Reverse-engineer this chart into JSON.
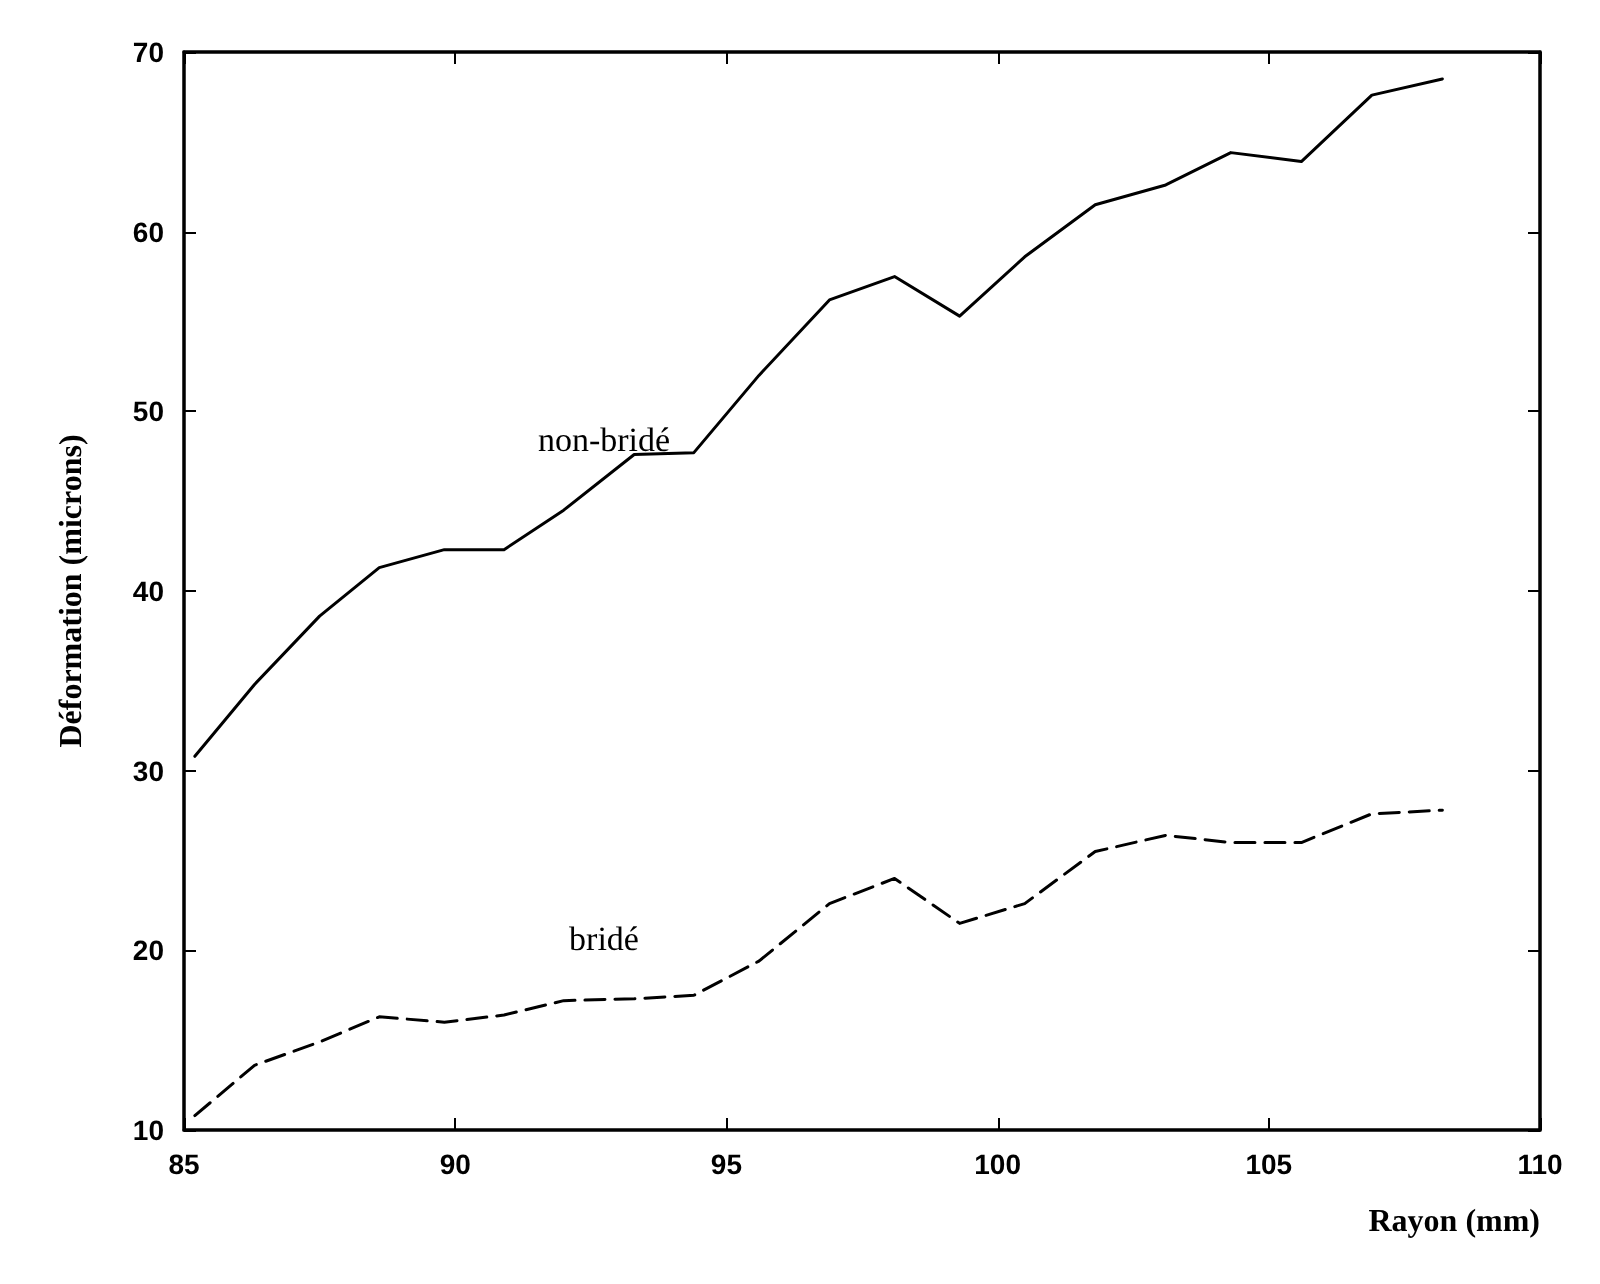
{
  "chart_data": {
    "type": "line",
    "xlabel": "Rayon (mm)",
    "ylabel": "Déformation (microns)",
    "x": [
      85.2,
      86.3,
      87.5,
      88.6,
      89.8,
      90.9,
      92.0,
      93.3,
      94.4,
      95.6,
      96.9,
      98.1,
      99.3,
      100.5,
      101.8,
      103.1,
      104.3,
      105.6,
      106.9,
      108.2
    ],
    "series": [
      {
        "name": "non-bridé",
        "color": "#000000",
        "line_style": "solid",
        "values": [
          30.8,
          34.8,
          38.6,
          41.3,
          42.3,
          42.3,
          44.5,
          47.6,
          47.7,
          52.0,
          56.2,
          57.5,
          55.3,
          58.6,
          61.5,
          62.6,
          64.4,
          63.9,
          67.6,
          68.5
        ]
      },
      {
        "name": "bridé",
        "color": "#000000",
        "line_style": "dashed",
        "values": [
          10.8,
          13.6,
          14.9,
          16.3,
          16.0,
          16.4,
          17.2,
          17.3,
          17.5,
          19.4,
          22.6,
          24.0,
          21.5,
          22.6,
          25.5,
          26.4,
          26.0,
          26.0,
          27.6,
          27.8
        ]
      }
    ],
    "xlim": [
      85,
      110
    ],
    "xticks": [
      85,
      90,
      95,
      100,
      105,
      110
    ],
    "ylim": [
      10,
      70
    ],
    "yticks": [
      10,
      20,
      30,
      40,
      50,
      60,
      70
    ],
    "grid": false,
    "legend": false,
    "marker": "none"
  }
}
